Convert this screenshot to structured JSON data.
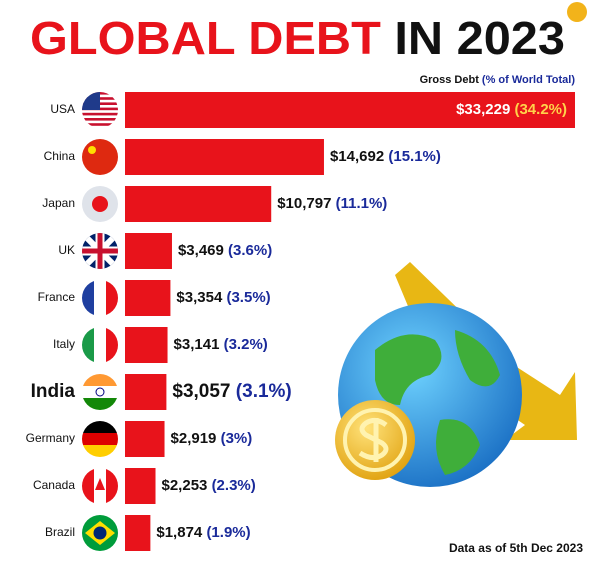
{
  "chart_data": {
    "type": "bar",
    "title": "GLOBAL DEBT",
    "title_rest": "IN 2023",
    "subtitle": "Gross Debt",
    "subtitle_note": "(% of World Total)",
    "note": "Data as of 5th Dec 2023",
    "color": "#e8131b",
    "categories": [
      "USA",
      "China",
      "Japan",
      "UK",
      "France",
      "Italy",
      "India",
      "Germany",
      "Canada",
      "Brazil"
    ],
    "values": [
      33229,
      14692,
      10797,
      3469,
      3354,
      3141,
      3057,
      2919,
      2253,
      1874
    ],
    "value_labels": [
      "$33,229",
      "$14,692",
      "$10,797",
      "$3,469",
      "$3,354",
      "$3,141",
      "$3,057",
      "$2,919",
      "$2,253",
      "$1,874"
    ],
    "share": {
      "values": [
        34.2,
        15.1,
        11.1,
        3.6,
        3.5,
        3.2,
        3.1,
        3,
        2.3,
        1.9
      ],
      "value_labels": [
        "(34.2%)",
        "(15.1%)",
        "(11.1%)",
        "(3.6%)",
        "(3.5%)",
        "(3.2%)",
        "(3.1%)",
        "(3%)",
        "(2.3%)",
        "(1.9%)"
      ]
    }
  }
}
